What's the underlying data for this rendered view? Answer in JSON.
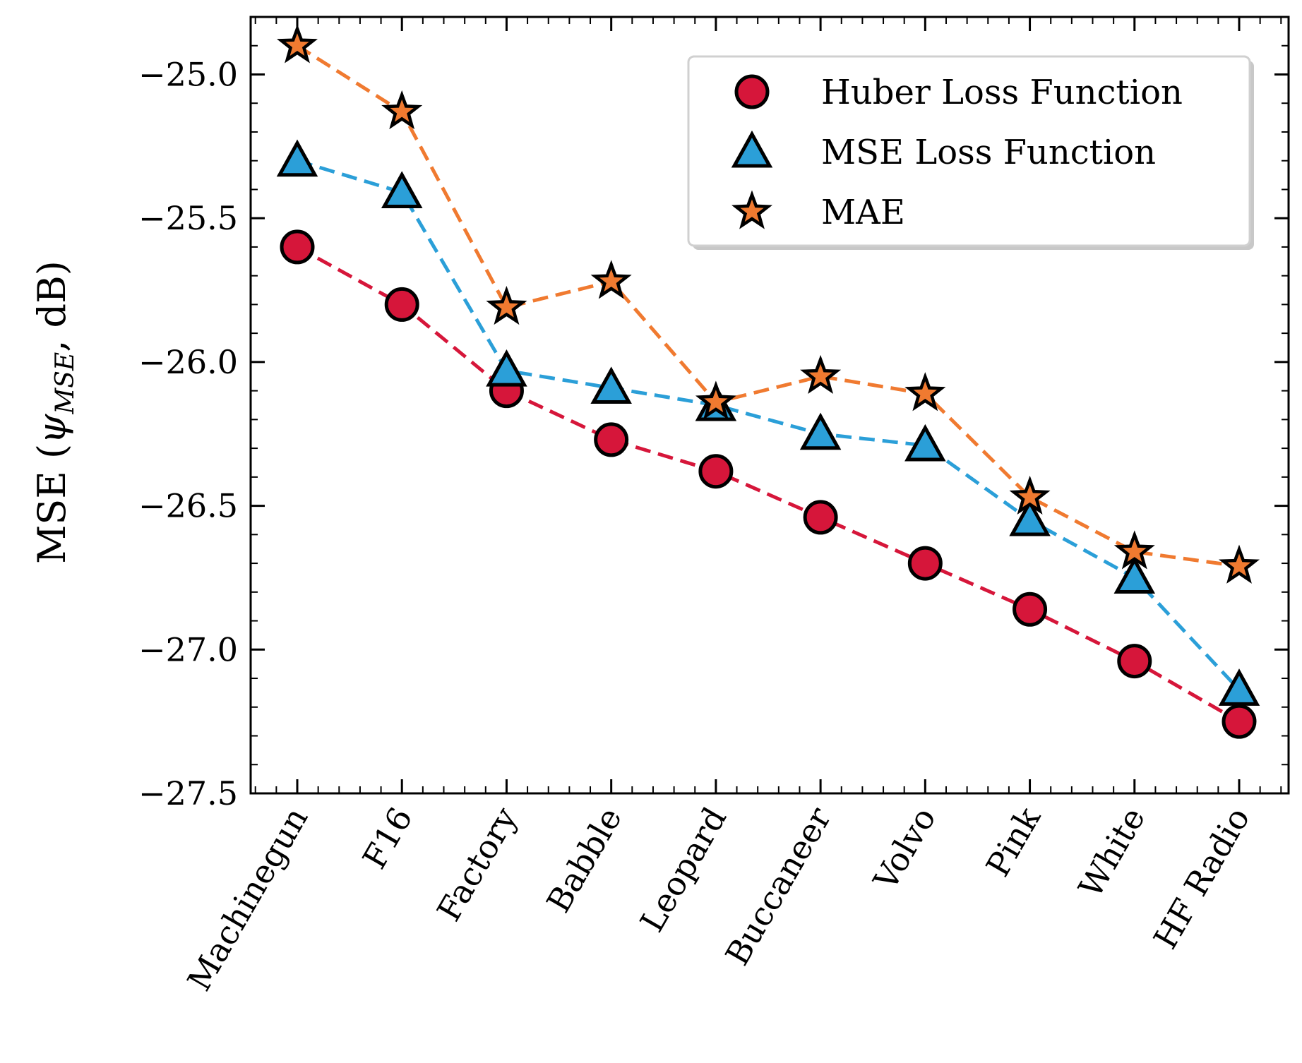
{
  "chart_data": {
    "type": "line",
    "title": "",
    "xlabel": "",
    "ylabel_main": "MSE (",
    "ylabel_psi": "ψ",
    "ylabel_sub": "MSE",
    "ylabel_tail": ", dB)",
    "ylim": [
      -27.5,
      -24.8
    ],
    "yticks": [
      -25.0,
      -25.5,
      -26.0,
      -26.5,
      -27.0,
      -27.5
    ],
    "ytick_labels": [
      "−25.0",
      "−25.5",
      "−26.0",
      "−26.5",
      "−27.0",
      "−27.5"
    ],
    "categories": [
      "Machinegun",
      "F16",
      "Factory",
      "Babble",
      "Leopard",
      "Buccaneer",
      "Volvo",
      "Pink",
      "White",
      "HF Radio"
    ],
    "legend_position": "top-right",
    "series": [
      {
        "name": "Huber Loss Function",
        "marker": "circle",
        "color": "#d6163a",
        "line_color": "#d6163a",
        "values": [
          -25.6,
          -25.8,
          -26.1,
          -26.27,
          -26.38,
          -26.54,
          -26.7,
          -26.86,
          -27.04,
          -27.25
        ]
      },
      {
        "name": "MSE Loss Function",
        "marker": "triangle",
        "color": "#2b9fd8",
        "line_color": "#2b9fd8",
        "values": [
          -25.3,
          -25.41,
          -26.03,
          -26.09,
          -26.15,
          -26.25,
          -26.29,
          -26.55,
          -26.75,
          -27.14
        ]
      },
      {
        "name": "MAE",
        "marker": "star",
        "color": "#f07a30",
        "line_color": "#f07a30",
        "values": [
          -24.9,
          -25.13,
          -25.81,
          -25.72,
          -26.14,
          -26.05,
          -26.11,
          -26.47,
          -26.66,
          -26.71
        ]
      }
    ]
  }
}
